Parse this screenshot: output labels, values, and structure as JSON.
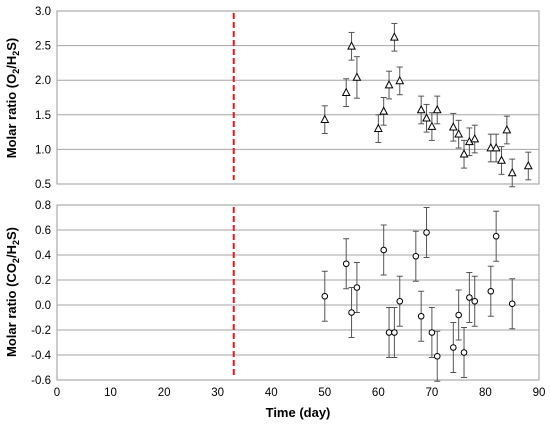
{
  "chart_data": [
    {
      "type": "scatter",
      "panel": "top",
      "ylabel_main": "Molar ratio (O",
      "ylabel_sub1": "2",
      "ylabel_mid": "/H",
      "ylabel_sub2": "2",
      "ylabel_end": "S)",
      "xlim": [
        0,
        90
      ],
      "ylim": [
        0.5,
        3.0
      ],
      "yticks": [
        "0.5",
        "1.0",
        "1.5",
        "2.0",
        "2.5",
        "3.0"
      ],
      "yticks_values": [
        0.5,
        1.0,
        1.5,
        2.0,
        2.5,
        3.0
      ],
      "grid": "horizontal",
      "marker": "triangle",
      "reference_line_x": 33,
      "reference_line_color": "#e31a1c",
      "series": [
        {
          "points": [
            {
              "x": 50,
              "y": 1.43,
              "err": 0.2
            },
            {
              "x": 54,
              "y": 1.82,
              "err": 0.2
            },
            {
              "x": 55,
              "y": 2.49,
              "err": 0.2
            },
            {
              "x": 56,
              "y": 2.04,
              "err": 0.3
            },
            {
              "x": 60,
              "y": 1.3,
              "err": 0.2
            },
            {
              "x": 61,
              "y": 1.55,
              "err": 0.2
            },
            {
              "x": 62,
              "y": 1.93,
              "err": 0.2
            },
            {
              "x": 63,
              "y": 2.62,
              "err": 0.2
            },
            {
              "x": 64,
              "y": 1.99,
              "err": 0.2
            },
            {
              "x": 68,
              "y": 1.57,
              "err": 0.2
            },
            {
              "x": 69,
              "y": 1.45,
              "err": 0.2
            },
            {
              "x": 70,
              "y": 1.33,
              "err": 0.2
            },
            {
              "x": 71,
              "y": 1.57,
              "err": 0.2
            },
            {
              "x": 74,
              "y": 1.32,
              "err": 0.2
            },
            {
              "x": 75,
              "y": 1.22,
              "err": 0.2
            },
            {
              "x": 76,
              "y": 0.93,
              "err": 0.2
            },
            {
              "x": 77,
              "y": 1.11,
              "err": 0.2
            },
            {
              "x": 78,
              "y": 1.15,
              "err": 0.2
            },
            {
              "x": 81,
              "y": 1.02,
              "err": 0.2
            },
            {
              "x": 82,
              "y": 1.02,
              "err": 0.2
            },
            {
              "x": 83,
              "y": 0.84,
              "err": 0.2
            },
            {
              "x": 84,
              "y": 1.28,
              "err": 0.2
            },
            {
              "x": 85,
              "y": 0.66,
              "err": 0.2
            },
            {
              "x": 88,
              "y": 0.76,
              "err": 0.2
            }
          ]
        }
      ]
    },
    {
      "type": "scatter",
      "panel": "bottom",
      "ylabel_main": "Molar ratio (CO",
      "ylabel_sub1": "2",
      "ylabel_mid": "/H",
      "ylabel_sub2": "2",
      "ylabel_end": "S)",
      "xlabel": "Time (day)",
      "xlim": [
        0,
        90
      ],
      "ylim": [
        -0.6,
        0.8
      ],
      "xticks": [
        "0",
        "10",
        "20",
        "30",
        "40",
        "50",
        "60",
        "70",
        "80",
        "90"
      ],
      "xticks_values": [
        0,
        10,
        20,
        30,
        40,
        50,
        60,
        70,
        80,
        90
      ],
      "yticks": [
        "-0.6",
        "-0.4",
        "-0.2",
        "0.0",
        "0.2",
        "0.4",
        "0.6",
        "0.8"
      ],
      "yticks_values": [
        -0.6,
        -0.4,
        -0.2,
        0.0,
        0.2,
        0.4,
        0.6,
        0.8
      ],
      "grid": "horizontal",
      "marker": "circle",
      "reference_line_x": 33,
      "reference_line_color": "#e31a1c",
      "series": [
        {
          "points": [
            {
              "x": 50,
              "y": 0.07,
              "err": 0.2
            },
            {
              "x": 54,
              "y": 0.33,
              "err": 0.2
            },
            {
              "x": 55,
              "y": -0.06,
              "err": 0.2
            },
            {
              "x": 56,
              "y": 0.14,
              "err": 0.2
            },
            {
              "x": 61,
              "y": 0.44,
              "err": 0.2
            },
            {
              "x": 62,
              "y": -0.22,
              "err": 0.2
            },
            {
              "x": 63,
              "y": -0.22,
              "err": 0.2
            },
            {
              "x": 64,
              "y": 0.03,
              "err": 0.2
            },
            {
              "x": 67,
              "y": 0.39,
              "err": 0.2
            },
            {
              "x": 68,
              "y": -0.09,
              "err": 0.2
            },
            {
              "x": 69,
              "y": 0.58,
              "err": 0.2
            },
            {
              "x": 70,
              "y": -0.22,
              "err": 0.2
            },
            {
              "x": 71,
              "y": -0.41,
              "err": 0.2
            },
            {
              "x": 74,
              "y": -0.34,
              "err": 0.2
            },
            {
              "x": 75,
              "y": -0.08,
              "err": 0.2
            },
            {
              "x": 76,
              "y": -0.38,
              "err": 0.2
            },
            {
              "x": 77,
              "y": 0.06,
              "err": 0.2
            },
            {
              "x": 78,
              "y": 0.03,
              "err": 0.2
            },
            {
              "x": 81,
              "y": 0.11,
              "err": 0.2
            },
            {
              "x": 82,
              "y": 0.55,
              "err": 0.2
            },
            {
              "x": 85,
              "y": 0.01,
              "err": 0.2
            }
          ]
        }
      ]
    }
  ]
}
